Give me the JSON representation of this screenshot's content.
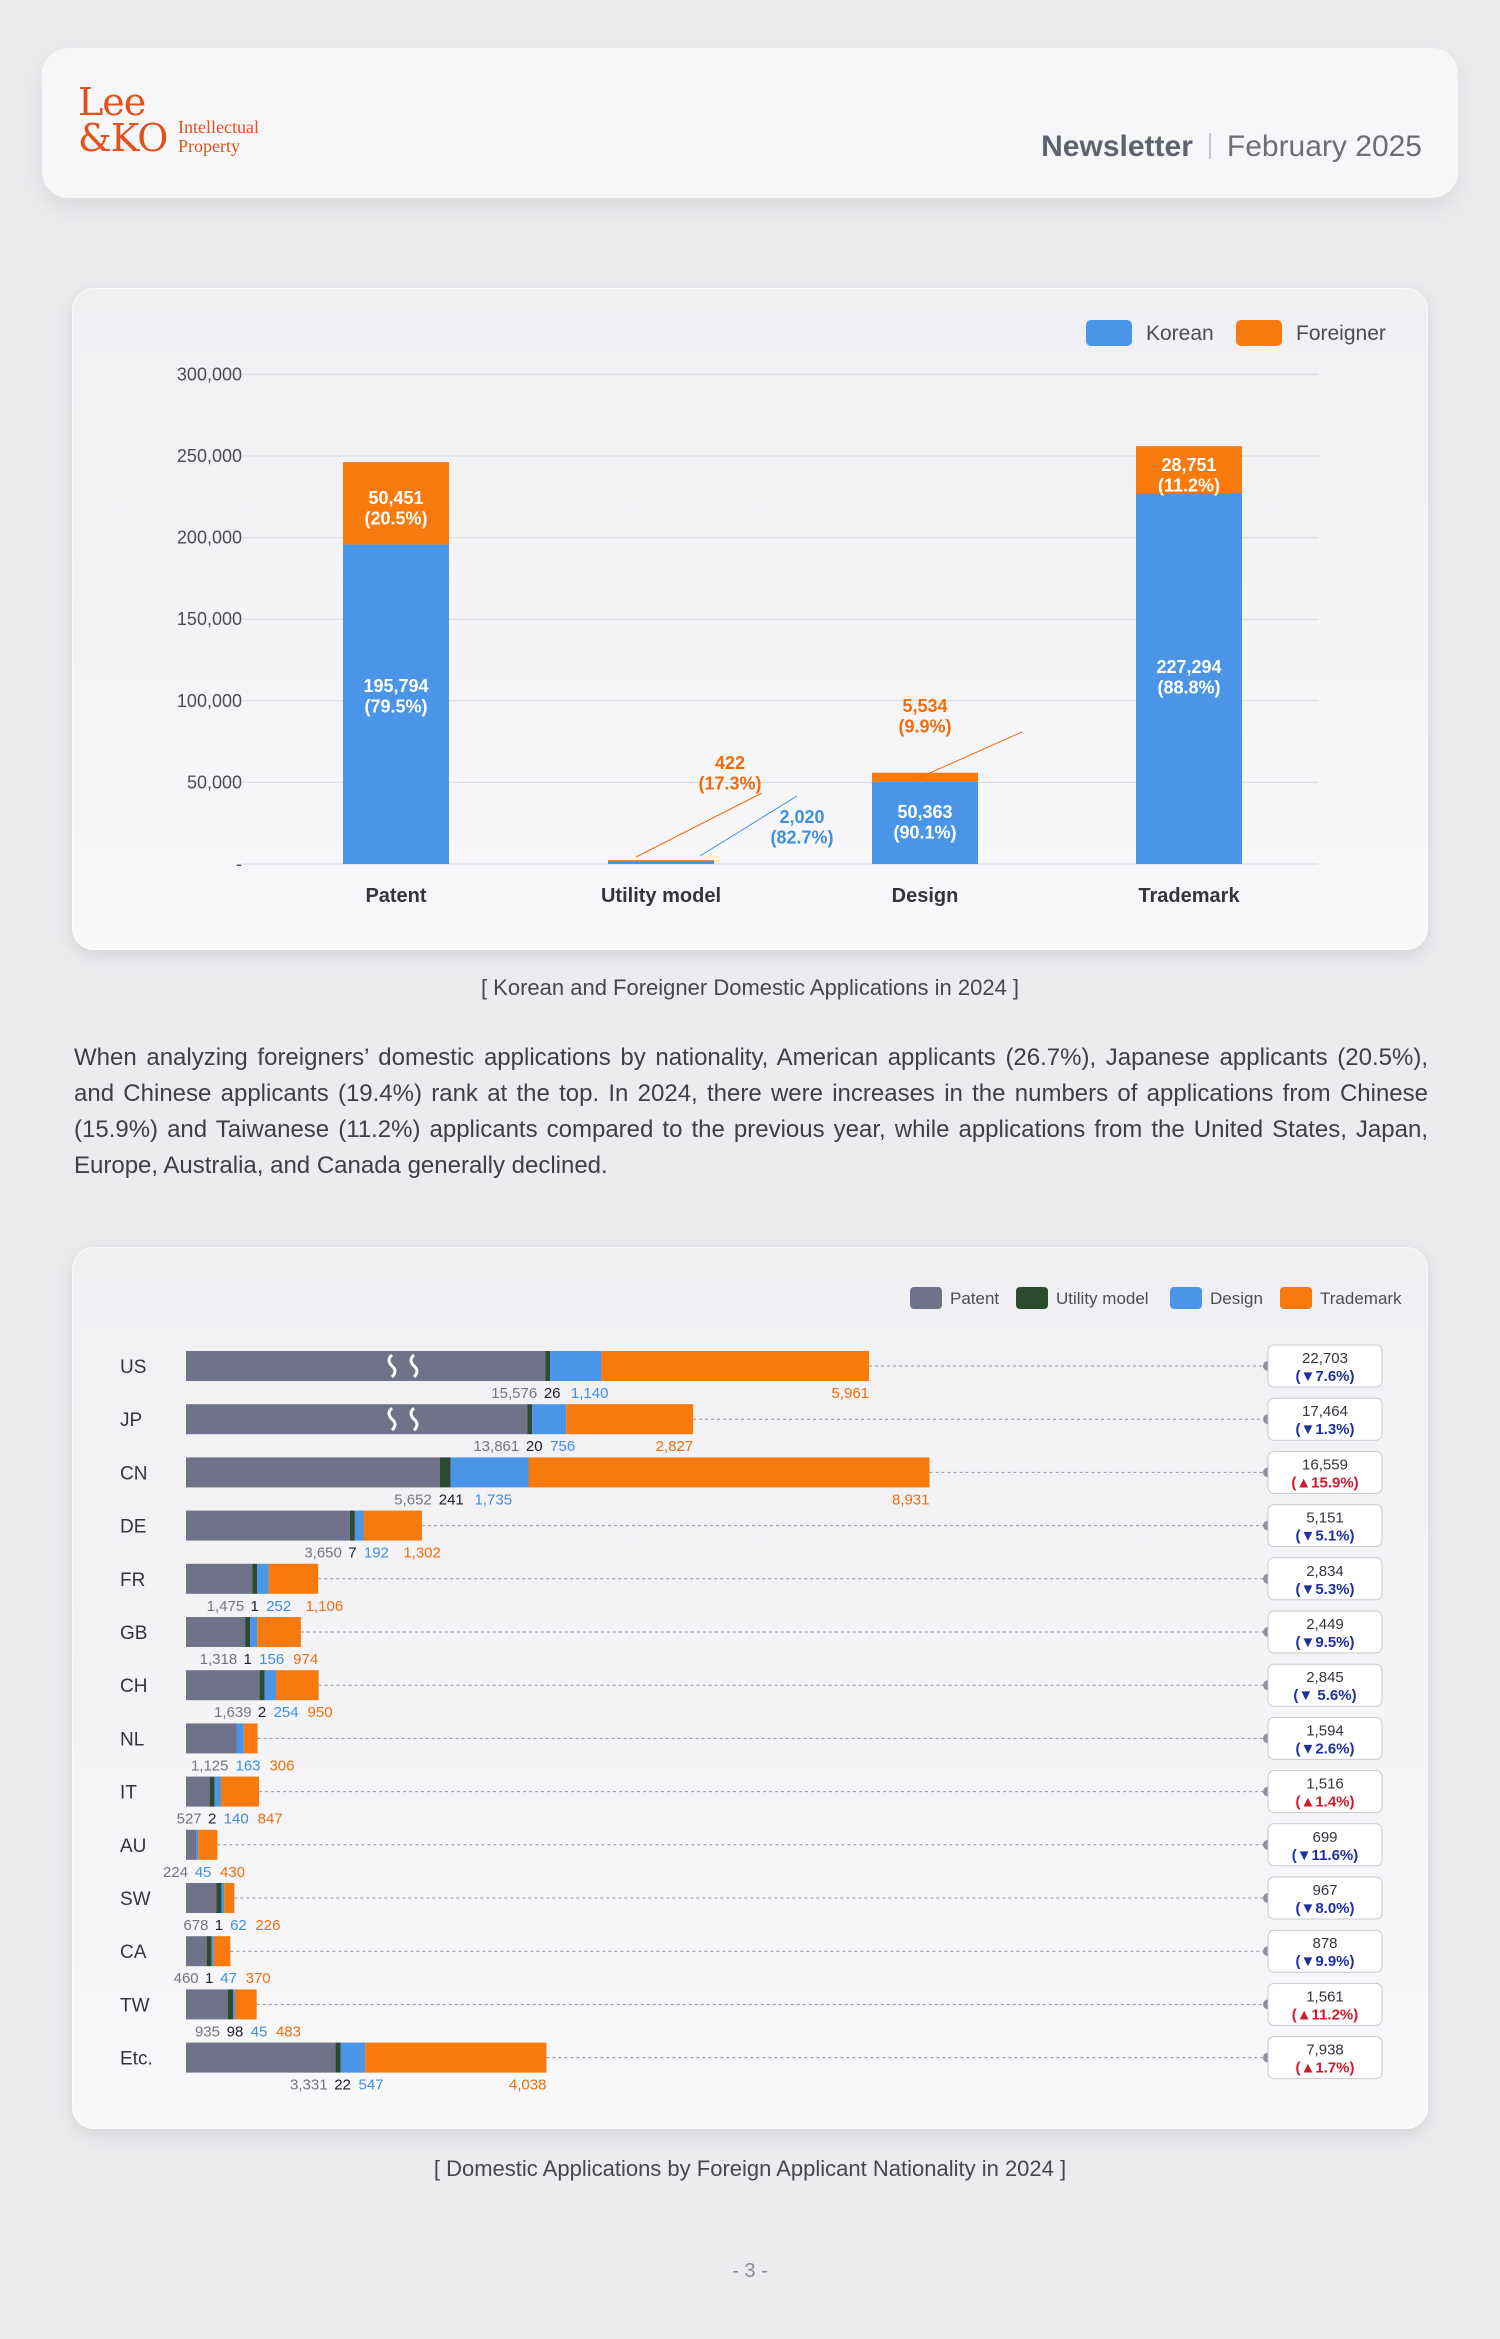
{
  "header": {
    "logo_line1": "Lee",
    "logo_line2": "&KO",
    "logo_sub1": "Intellectual",
    "logo_sub2": "Property",
    "newsletter": "Newsletter",
    "issue_date": "February 2025"
  },
  "colors": {
    "korean": "#4a95e8",
    "foreigner": "#f97a0c",
    "patent": "#6f7288",
    "utility_model": "#2c4a2e",
    "design": "#4a95e8",
    "trademark": "#f97a0c",
    "increase": "#d0192b",
    "decrease": "#1f2fa0"
  },
  "caption1": "[ Korean and Foreigner Domestic Applications in 2024 ]",
  "caption2": "[ Domestic Applications by Foreign Applicant Nationality in 2024 ]",
  "paragraph": "When analyzing foreigners’ domestic applications by nationality, American applicants (26.7%), Japanese applicants (20.5%), and Chinese applicants (19.4%) rank at the top. In 2024, there were increases in the numbers of applications from Chinese (15.9%) and Taiwanese (11.2%) applicants compared to the previous year, while applications from the United States, Japan, Europe, Australia, and Canada generally declined.",
  "page_number": "- 3 -",
  "chart_data": [
    {
      "type": "bar",
      "stacked": true,
      "categories": [
        "Patent",
        "Utility model",
        "Design",
        "Trademark"
      ],
      "series": [
        {
          "name": "Korean",
          "values": [
            195794,
            2020,
            50363,
            227294
          ],
          "labels": [
            "195,794\n(79.5%)",
            "2,020\n(82.7%)",
            "50,363\n(90.1%)",
            "227,294\n(88.8%)"
          ]
        },
        {
          "name": "Foreigner",
          "values": [
            50451,
            422,
            5534,
            28751
          ],
          "labels": [
            "50,451\n(20.5%)",
            "422\n(17.3%)",
            "5,534\n(9.9%)",
            "28,751\n(11.2%)"
          ]
        }
      ],
      "ylim": [
        0,
        300000
      ],
      "yticks": [
        0,
        50000,
        100000,
        150000,
        200000,
        250000,
        300000
      ],
      "ytick_labels": [
        "-",
        "50,000",
        "100,000",
        "150,000",
        "200,000",
        "250,000",
        "300,000"
      ],
      "grid": true,
      "legend": "top-right"
    },
    {
      "type": "bar",
      "orientation": "horizontal",
      "stacked": true,
      "axis_break": [
        "US",
        "JP"
      ],
      "legend": "top-right",
      "series_names": [
        "Patent",
        "Utility model",
        "Design",
        "Trademark"
      ],
      "rows": [
        {
          "country": "US",
          "patent": 15576,
          "utility": 26,
          "design": 1140,
          "trademark": 5961,
          "labels": [
            "15,576",
            "26",
            "1,140",
            "5,961"
          ],
          "total": "22,703",
          "change": "7.6%",
          "dir": "down"
        },
        {
          "country": "JP",
          "patent": 13861,
          "utility": 20,
          "design": 756,
          "trademark": 2827,
          "labels": [
            "13,861",
            "20",
            "756",
            "2,827"
          ],
          "total": "17,464",
          "change": "1.3%",
          "dir": "down"
        },
        {
          "country": "CN",
          "patent": 5652,
          "utility": 241,
          "design": 1735,
          "trademark": 8931,
          "labels": [
            "5,652",
            "241",
            "1,735",
            "8,931"
          ],
          "total": "16,559",
          "change": "15.9%",
          "dir": "up"
        },
        {
          "country": "DE",
          "patent": 3650,
          "utility": 7,
          "design": 192,
          "trademark": 1302,
          "labels": [
            "3,650",
            "7",
            "192",
            "1,302"
          ],
          "total": "5,151",
          "change": "5.1%",
          "dir": "down"
        },
        {
          "country": "FR",
          "patent": 1475,
          "utility": 1,
          "design": 252,
          "trademark": 1106,
          "labels": [
            "1,475",
            "1",
            "252",
            "1,106"
          ],
          "total": "2,834",
          "change": "5.3%",
          "dir": "down"
        },
        {
          "country": "GB",
          "patent": 1318,
          "utility": 1,
          "design": 156,
          "trademark": 974,
          "labels": [
            "1,318",
            "1",
            "156",
            "974"
          ],
          "total": "2,449",
          "change": "9.5%",
          "dir": "down"
        },
        {
          "country": "CH",
          "patent": 1639,
          "utility": 2,
          "design": 254,
          "trademark": 950,
          "labels": [
            "1,639",
            "2",
            "254",
            "950"
          ],
          "total": "2,845",
          "change": " 5.6%",
          "dir": "down"
        },
        {
          "country": "NL",
          "patent": 1125,
          "utility": 0,
          "design": 163,
          "trademark": 306,
          "labels": [
            "1,125",
            "",
            "163",
            "306"
          ],
          "total": "1,594",
          "change": "2.6%",
          "dir": "down"
        },
        {
          "country": "IT",
          "patent": 527,
          "utility": 2,
          "design": 140,
          "trademark": 847,
          "labels": [
            "527",
            "2",
            "140",
            "847"
          ],
          "total": "1,516",
          "change": "1.4%",
          "dir": "up"
        },
        {
          "country": "AU",
          "patent": 224,
          "utility": 0,
          "design": 45,
          "trademark": 430,
          "labels": [
            "224",
            "",
            "45",
            "430"
          ],
          "total": "699",
          "change": "11.6%",
          "dir": "down"
        },
        {
          "country": "SW",
          "patent": 678,
          "utility": 1,
          "design": 62,
          "trademark": 226,
          "labels": [
            "678",
            "1",
            "62",
            "226"
          ],
          "total": "967",
          "change": "8.0%",
          "dir": "down"
        },
        {
          "country": "CA",
          "patent": 460,
          "utility": 1,
          "design": 47,
          "trademark": 370,
          "labels": [
            "460",
            "1",
            "47",
            "370"
          ],
          "total": "878",
          "change": "9.9%",
          "dir": "down"
        },
        {
          "country": "TW",
          "patent": 935,
          "utility": 98,
          "design": 45,
          "trademark": 483,
          "labels": [
            "935",
            "98",
            "45",
            "483"
          ],
          "total": "1,561",
          "change": "11.2%",
          "dir": "up"
        },
        {
          "country": "Etc.",
          "patent": 3331,
          "utility": 22,
          "design": 547,
          "trademark": 4038,
          "labels": [
            "3,331",
            "22",
            "547",
            "4,038"
          ],
          "total": "7,938",
          "change": "1.7%",
          "dir": "up"
        }
      ]
    }
  ]
}
